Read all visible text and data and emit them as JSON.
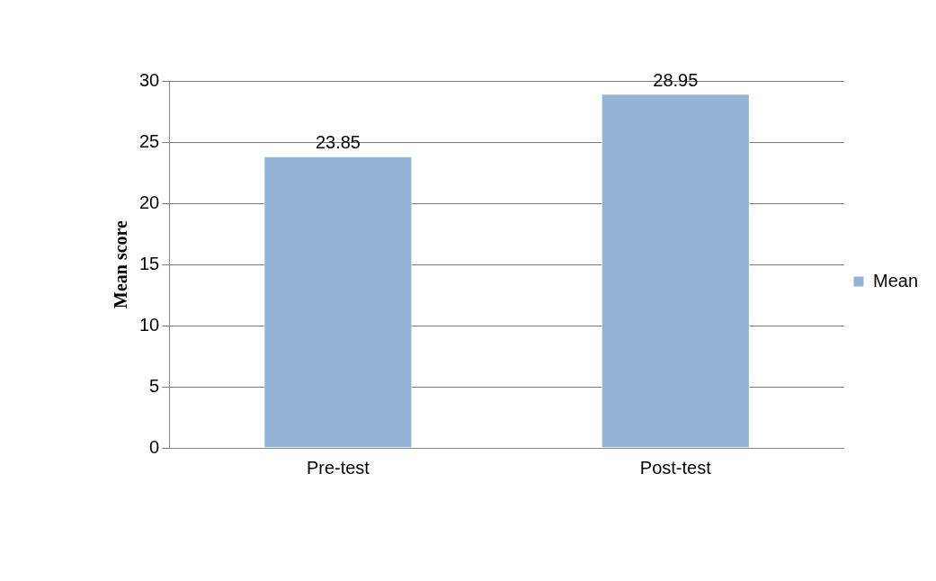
{
  "chart_data": {
    "type": "bar",
    "ylabel": "Mean score",
    "categories": [
      "Pre-test",
      "Post-test"
    ],
    "series": [
      {
        "name": "Mean",
        "color": "#95b3d7",
        "values": [
          23.85,
          28.95
        ]
      }
    ],
    "ylim": [
      0,
      30
    ],
    "yticks": [
      0,
      5,
      10,
      15,
      20,
      25,
      30
    ],
    "grid": "y",
    "legend": "right",
    "data_labels": true
  }
}
